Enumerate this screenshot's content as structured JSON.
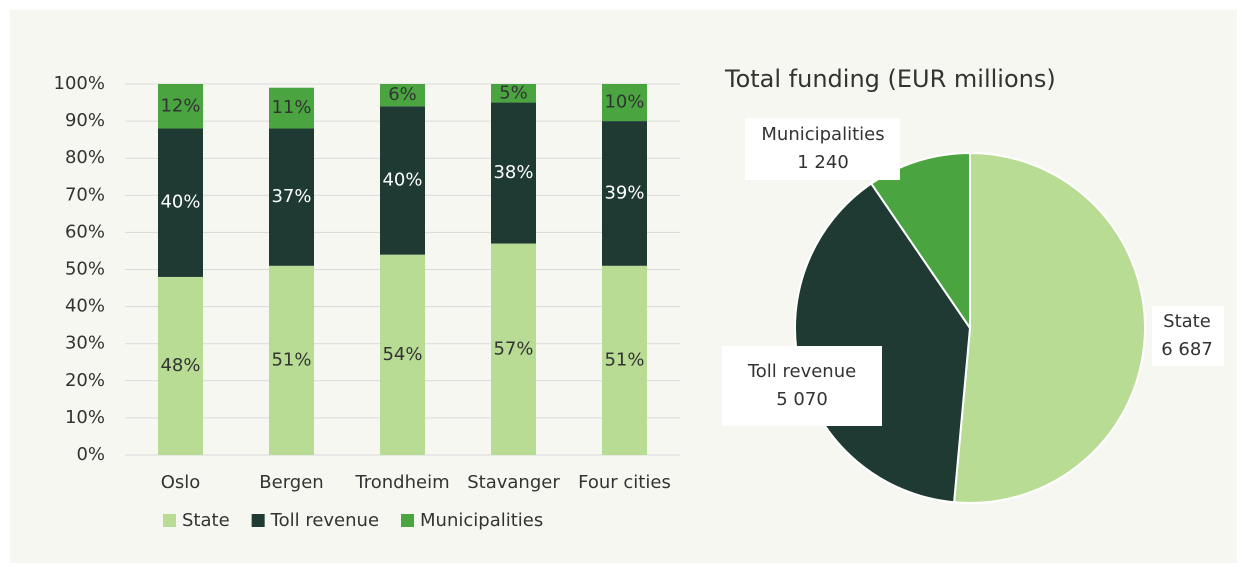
{
  "chart_data": [
    {
      "type": "bar",
      "stacked": true,
      "categories": [
        "Oslo",
        "Bergen",
        "Trondheim",
        "Stavanger",
        "Four cities"
      ],
      "series": [
        {
          "name": "State",
          "color": "#b8dc94",
          "values": [
            48,
            51,
            54,
            57,
            51
          ],
          "value_labels": [
            "48%",
            "51%",
            "54%",
            "57%",
            "51%"
          ]
        },
        {
          "name": "Toll revenue",
          "color": "#1e3a33",
          "values": [
            40,
            37,
            40,
            38,
            39
          ],
          "value_labels": [
            "40%",
            "37%",
            "40%",
            "38%",
            "39%"
          ]
        },
        {
          "name": "Municipalities",
          "color": "#4aa540",
          "values": [
            12,
            11,
            6,
            5,
            10
          ],
          "value_labels": [
            "12%",
            "11%",
            "6%",
            "5%",
            "10%"
          ]
        }
      ],
      "ylim": [
        0,
        100
      ],
      "yticks": [
        {
          "value": 0,
          "label": "0%"
        },
        {
          "value": 10,
          "label": "10%"
        },
        {
          "value": 20,
          "label": "20%"
        },
        {
          "value": 30,
          "label": "30%"
        },
        {
          "value": 40,
          "label": "40%"
        },
        {
          "value": 50,
          "label": "50%"
        },
        {
          "value": 60,
          "label": "60%"
        },
        {
          "value": 70,
          "label": "70%"
        },
        {
          "value": 80,
          "label": "80%"
        },
        {
          "value": 90,
          "label": "90%"
        },
        {
          "value": 100,
          "label": "100%"
        }
      ],
      "grid": true,
      "legend": "bottom"
    },
    {
      "type": "pie",
      "title": "Total funding (EUR millions)",
      "categories": [
        "State",
        "Toll revenue",
        "Municipalities"
      ],
      "values": [
        6687,
        5070,
        1240
      ],
      "value_labels": [
        "6 687",
        "5 070",
        "1 240"
      ],
      "colors": [
        "#b8dc94",
        "#1e3a33",
        "#4aa540"
      ]
    }
  ]
}
